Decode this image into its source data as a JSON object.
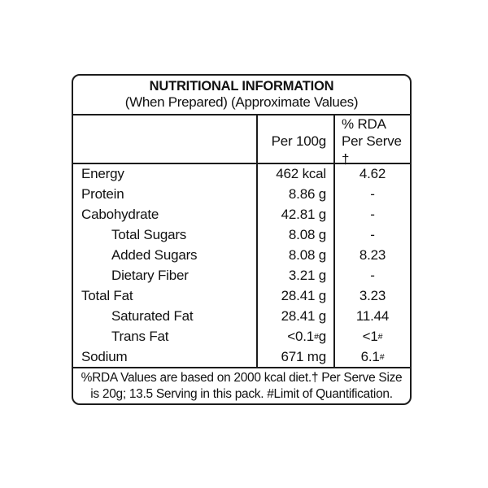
{
  "label": {
    "title": "NUTRITIONAL INFORMATION",
    "subtitle": "(When Prepared) (Approximate Values)",
    "columns": {
      "per_100g": "Per 100g",
      "rda_line1": "% RDA",
      "rda_line2": "Per Serve †"
    },
    "rows": [
      {
        "label": "Energy",
        "indent": false,
        "per100g": {
          "pre": "462 kcal"
        },
        "rda": {
          "pre": "4.62"
        }
      },
      {
        "label": "Protein",
        "indent": false,
        "per100g": {
          "pre": "8.86 g"
        },
        "rda": {
          "pre": "-"
        }
      },
      {
        "label": "Cabohydrate",
        "indent": false,
        "per100g": {
          "pre": "42.81 g"
        },
        "rda": {
          "pre": "-"
        }
      },
      {
        "label": "Total Sugars",
        "indent": true,
        "per100g": {
          "pre": "8.08 g"
        },
        "rda": {
          "pre": "-"
        }
      },
      {
        "label": "Added Sugars",
        "indent": true,
        "per100g": {
          "pre": "8.08 g"
        },
        "rda": {
          "pre": "8.23"
        }
      },
      {
        "label": "Dietary Fiber",
        "indent": true,
        "per100g": {
          "pre": "3.21 g"
        },
        "rda": {
          "pre": "-"
        }
      },
      {
        "label": "Total Fat",
        "indent": false,
        "per100g": {
          "pre": "28.41 g"
        },
        "rda": {
          "pre": "3.23"
        }
      },
      {
        "label": "Saturated Fat",
        "indent": true,
        "per100g": {
          "pre": "28.41 g"
        },
        "rda": {
          "pre": "11.44"
        }
      },
      {
        "label": "Trans Fat",
        "indent": true,
        "per100g": {
          "pre": "<0.1",
          "sup": "#",
          "post": "g"
        },
        "rda": {
          "pre": "<1",
          "sup": "#"
        }
      },
      {
        "label": "Sodium",
        "indent": false,
        "per100g": {
          "pre": "671 mg"
        },
        "rda": {
          "pre": "6.1",
          "sup": "#"
        }
      }
    ],
    "footnote": {
      "line1": "%RDA Values are based on 2000 kcal diet.† Per Serve Size",
      "line2": "is 20g; 13.5 Serving in this pack. #Limit of Quantification."
    },
    "colors": {
      "background": "#ffffff",
      "text": "#111111",
      "border": "#1c1c1c"
    }
  }
}
